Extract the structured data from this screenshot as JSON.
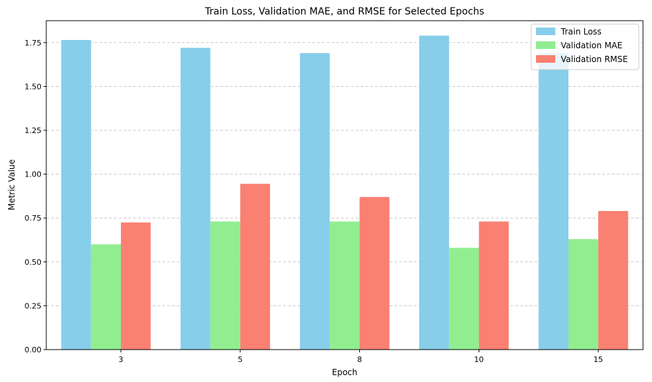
{
  "chart_data": {
    "type": "bar",
    "title": "Train Loss, Validation MAE, and RMSE for Selected Epochs",
    "xlabel": "Epoch",
    "ylabel": "Metric Value",
    "categories": [
      "3",
      "5",
      "8",
      "10",
      "15"
    ],
    "ylim": [
      0,
      1.875
    ],
    "yticks": [
      "0.00",
      "0.25",
      "0.50",
      "0.75",
      "1.00",
      "1.25",
      "1.50",
      "1.75"
    ],
    "grid": "y-dashed",
    "legend_position": "top-right",
    "series": [
      {
        "name": "Train Loss",
        "color": "#87ceeb",
        "values": [
          1.765,
          1.72,
          1.69,
          1.79,
          1.69
        ]
      },
      {
        "name": "Validation MAE",
        "color": "#90ee90",
        "values": [
          0.6,
          0.73,
          0.73,
          0.58,
          0.63
        ]
      },
      {
        "name": "Validation RMSE",
        "color": "#fa8072",
        "values": [
          0.725,
          0.945,
          0.87,
          0.73,
          0.79
        ]
      }
    ]
  }
}
